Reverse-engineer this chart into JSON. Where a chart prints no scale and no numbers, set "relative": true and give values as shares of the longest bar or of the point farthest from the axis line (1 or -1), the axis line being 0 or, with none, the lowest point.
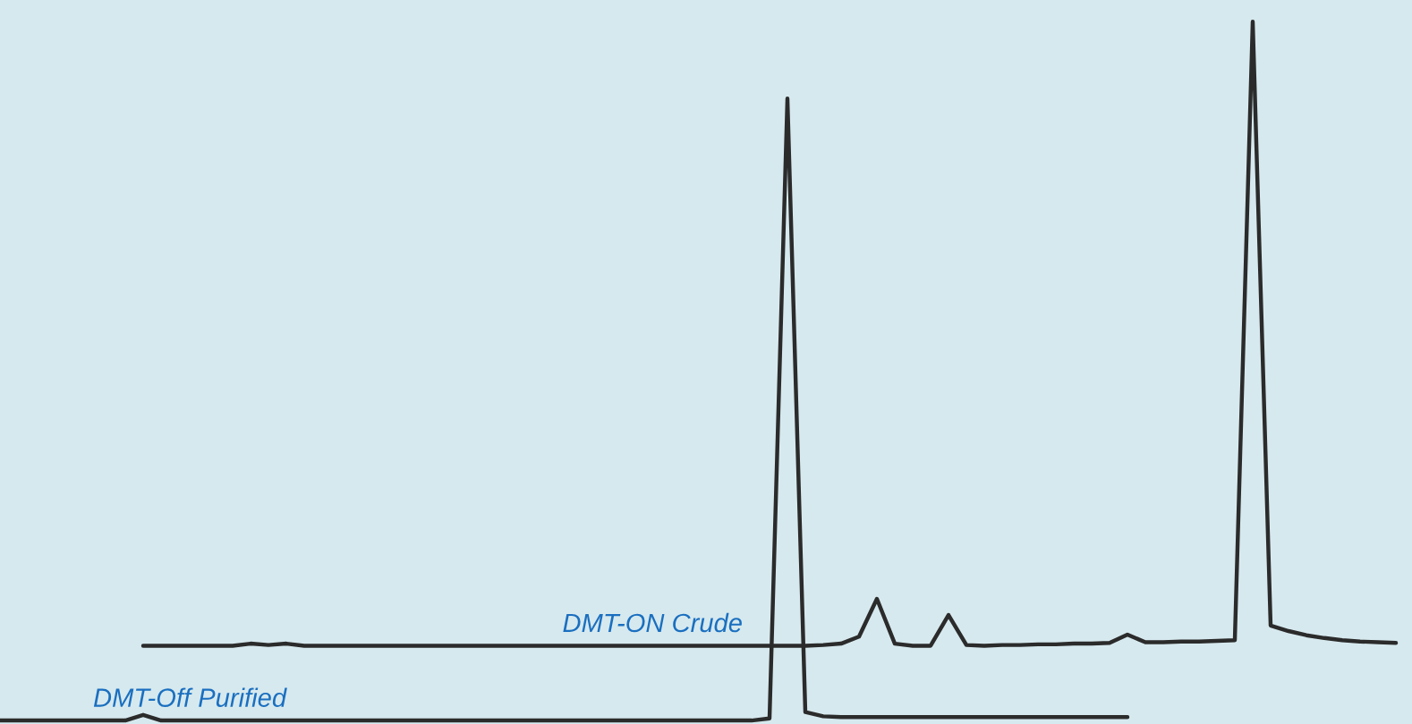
{
  "chart_data": {
    "type": "line",
    "relative": true,
    "marker": "none",
    "line_style": "solid",
    "categories": [
      null,
      null,
      null,
      null,
      null,
      null,
      null,
      null,
      null,
      null,
      null,
      null,
      null,
      null,
      null,
      null,
      null,
      null,
      null,
      null,
      null,
      null,
      null,
      null,
      null,
      null,
      null,
      null,
      null,
      null,
      null,
      null,
      null,
      null,
      null,
      null,
      null,
      null,
      null,
      null,
      null,
      null,
      null,
      null,
      null,
      null,
      null,
      null,
      null,
      null,
      null,
      null,
      null,
      null,
      null,
      null,
      null,
      null,
      null,
      null,
      null,
      null,
      null,
      null,
      null,
      null,
      null,
      null,
      null,
      null,
      null,
      null,
      null,
      null,
      null,
      null,
      null,
      null,
      null
    ],
    "series": [
      {
        "name": "DMT-ON Crude",
        "color": "#2b2b2b",
        "values": [
          null,
          null,
          null,
          null,
          null,
          null,
          null,
          null,
          0.107,
          0.107,
          0.107,
          0.107,
          0.107,
          0.107,
          0.11,
          0.108,
          0.11,
          0.107,
          0.107,
          0.107,
          0.107,
          0.107,
          0.107,
          0.107,
          0.107,
          0.107,
          0.107,
          0.107,
          0.107,
          0.107,
          0.107,
          0.107,
          0.107,
          0.107,
          0.107,
          0.107,
          0.107,
          0.107,
          0.107,
          0.107,
          0.107,
          0.107,
          0.107,
          0.107,
          0.107,
          0.107,
          0.108,
          0.11,
          0.12,
          0.174,
          0.11,
          0.107,
          0.107,
          0.151,
          0.108,
          0.107,
          0.108,
          0.108,
          0.109,
          0.109,
          0.11,
          0.11,
          0.111,
          0.123,
          0.112,
          0.112,
          0.113,
          0.113,
          0.114,
          0.115,
          1.0,
          0.136,
          0.128,
          0.122,
          0.118,
          0.115,
          0.113,
          0.112,
          0.111
        ]
      },
      {
        "name": "DMT-Off Purified",
        "color": "#2b2b2b",
        "values": [
          0,
          0,
          0,
          0,
          0,
          0,
          0,
          0,
          0.008,
          0,
          0,
          0,
          0,
          0,
          0,
          0,
          0,
          0,
          0,
          0,
          0,
          0,
          0,
          0,
          0,
          0,
          0,
          0,
          0,
          0,
          0,
          0,
          0,
          0,
          0,
          0,
          0,
          0,
          0,
          0,
          0,
          0,
          0,
          0.003,
          0.89,
          0.012,
          0.006,
          0.005,
          0.005,
          0.005,
          0.005,
          0.005,
          0.005,
          0.005,
          0.005,
          0.005,
          0.005,
          0.005,
          0.005,
          0.005,
          0.005,
          0.005,
          0.005,
          0.005,
          null,
          null,
          null,
          null,
          null,
          null,
          null,
          null,
          null,
          null,
          null,
          null,
          null,
          null,
          null
        ]
      }
    ]
  }
}
